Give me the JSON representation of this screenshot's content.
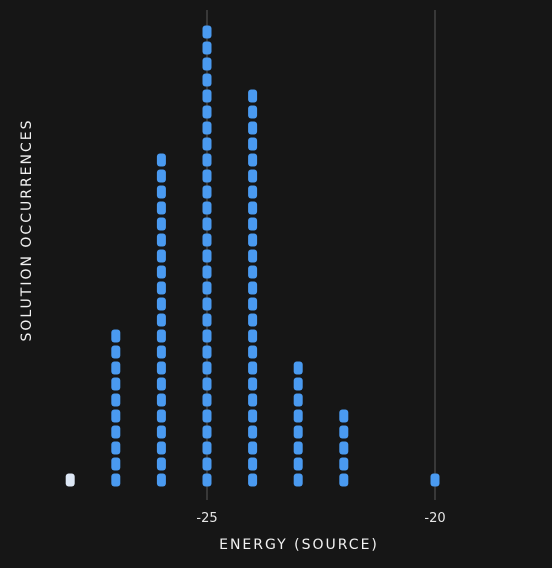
{
  "chart_data": {
    "type": "dot_histogram",
    "xlabel": "ENERGY (SOURCE)",
    "ylabel": "SOLUTION OCCURRENCES",
    "xlim": [
      -28.6,
      -18.5
    ],
    "x_ticks": [
      -25,
      -20
    ],
    "x_tick_labels": [
      "-25",
      "-20"
    ],
    "gridlines_x": [
      -25,
      -20
    ],
    "series": [
      {
        "bins": [
          {
            "x": -28,
            "count": 1,
            "color": "#dde7f5"
          },
          {
            "x": -27,
            "count": 10,
            "color": "#4a9af0"
          },
          {
            "x": -26,
            "count": 21,
            "color": "#4a9af0"
          },
          {
            "x": -25,
            "count": 29,
            "color": "#4a9af0"
          },
          {
            "x": -24,
            "count": 25,
            "color": "#4a9af0"
          },
          {
            "x": -23,
            "count": 8,
            "color": "#4a9af0"
          },
          {
            "x": -22,
            "count": 5,
            "color": "#4a9af0"
          },
          {
            "x": -20,
            "count": 1,
            "color": "#4a9af0"
          }
        ]
      }
    ]
  }
}
